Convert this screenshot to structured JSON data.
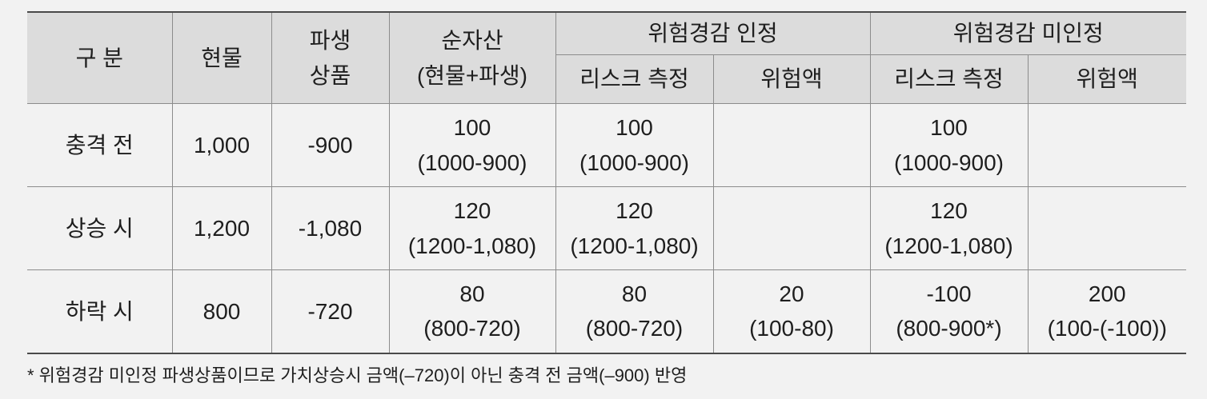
{
  "header": {
    "category": "구 분",
    "spot": "현물",
    "derivative_line1": "파생",
    "derivative_line2": "상품",
    "net_line1": "순자산",
    "net_line2": "(현물+파생)",
    "hedge_recognized": "위험경감 인정",
    "hedge_unrecognized": "위험경감 미인정",
    "risk_measure": "리스크 측정",
    "risk_amount": "위험액"
  },
  "rows": [
    {
      "label": "충격 전",
      "spot": "1,000",
      "deriv": "-900",
      "net_value": "100",
      "net_calc": "(1000-900)",
      "rec_measure_value": "100",
      "rec_measure_calc": "(1000-900)",
      "rec_amount_value": "",
      "rec_amount_calc": "",
      "unrec_measure_value": "100",
      "unrec_measure_calc": "(1000-900)",
      "unrec_amount_value": "",
      "unrec_amount_calc": ""
    },
    {
      "label": "상승 시",
      "spot": "1,200",
      "deriv": "-1,080",
      "net_value": "120",
      "net_calc": "(1200-1,080)",
      "rec_measure_value": "120",
      "rec_measure_calc": "(1200-1,080)",
      "rec_amount_value": "",
      "rec_amount_calc": "",
      "unrec_measure_value": "120",
      "unrec_measure_calc": "(1200-1,080)",
      "unrec_amount_value": "",
      "unrec_amount_calc": ""
    },
    {
      "label": "하락 시",
      "spot": "800",
      "deriv": "-720",
      "net_value": "80",
      "net_calc": "(800-720)",
      "rec_measure_value": "80",
      "rec_measure_calc": "(800-720)",
      "rec_amount_value": "20",
      "rec_amount_calc": "(100-80)",
      "unrec_measure_value": "-100",
      "unrec_measure_calc": "(800-900*)",
      "unrec_amount_value": "200",
      "unrec_amount_calc": "(100-(-100))"
    }
  ],
  "footnote": "* 위험경감 미인정 파생상품이므로 가치상승시 금액(–720)이 아닌 충격 전 금액(–900) 반영"
}
